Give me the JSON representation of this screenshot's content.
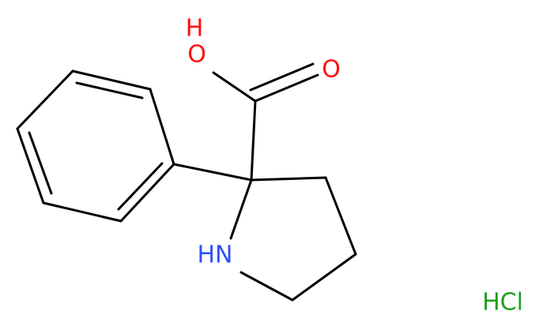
{
  "atoms": {
    "hydroxyl_h": "H",
    "hydroxyl_o": "O",
    "carbonyl_o": "O",
    "amine": "HN",
    "salt": "HCl"
  }
}
